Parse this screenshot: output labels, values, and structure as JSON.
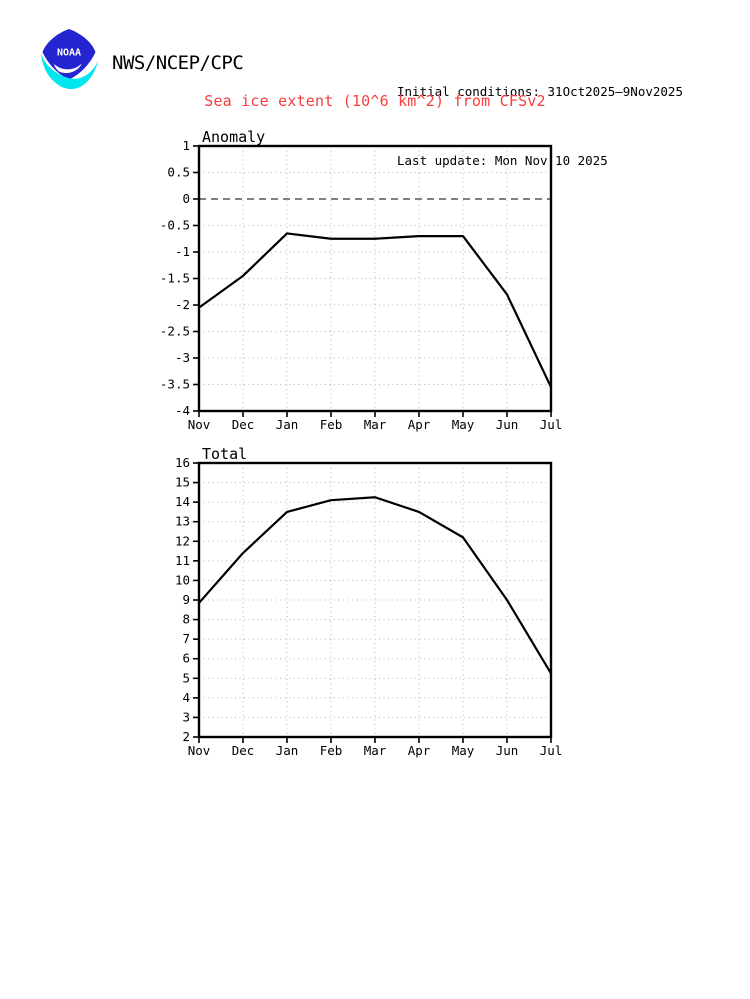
{
  "header": {
    "logo_text": "NOAA",
    "logo_colors": {
      "blue": "#2424d0",
      "cyan": "#00e6ee",
      "bird": "#ffffff"
    },
    "agency": "NWS/NCEP/CPC",
    "initial_conditions": "Initial conditions: 31Oct2025–9Nov2025",
    "last_update": "Last update: Mon Nov 10 2025"
  },
  "title": {
    "text": "Sea ice extent (10^6 km^2) from CFSv2",
    "color": "#fa3c3c"
  },
  "chart_data": [
    {
      "type": "line",
      "title": "Anomaly",
      "x": [
        "Nov",
        "Dec",
        "Jan",
        "Feb",
        "Mar",
        "Apr",
        "May",
        "Jun",
        "Jul"
      ],
      "values": [
        -2.05,
        -1.45,
        -0.65,
        -0.75,
        -0.75,
        -0.7,
        -0.7,
        -1.8,
        -3.55
      ],
      "ylim": [
        -4,
        1
      ],
      "yticks": [
        1,
        0.5,
        0,
        -0.5,
        -1,
        -1.5,
        -2,
        -2.5,
        -3,
        -3.5,
        -4
      ],
      "zero_line": true,
      "grid": "dotted",
      "legend": "none",
      "xlabel": "",
      "ylabel": "",
      "line_color": "#000000",
      "grid_color": "#b4b4b4"
    },
    {
      "type": "line",
      "title": "Total",
      "x": [
        "Nov",
        "Dec",
        "Jan",
        "Feb",
        "Mar",
        "Apr",
        "May",
        "Jun",
        "Jul"
      ],
      "values": [
        8.85,
        11.4,
        13.5,
        14.1,
        14.25,
        13.5,
        12.2,
        9.0,
        5.25
      ],
      "ylim": [
        2,
        16
      ],
      "yticks": [
        16,
        15,
        14,
        13,
        12,
        11,
        10,
        9,
        8,
        7,
        6,
        5,
        4,
        3,
        2
      ],
      "zero_line": false,
      "grid": "dotted",
      "legend": "none",
      "xlabel": "",
      "ylabel": "",
      "line_color": "#000000",
      "grid_color": "#b4b4b4"
    }
  ]
}
